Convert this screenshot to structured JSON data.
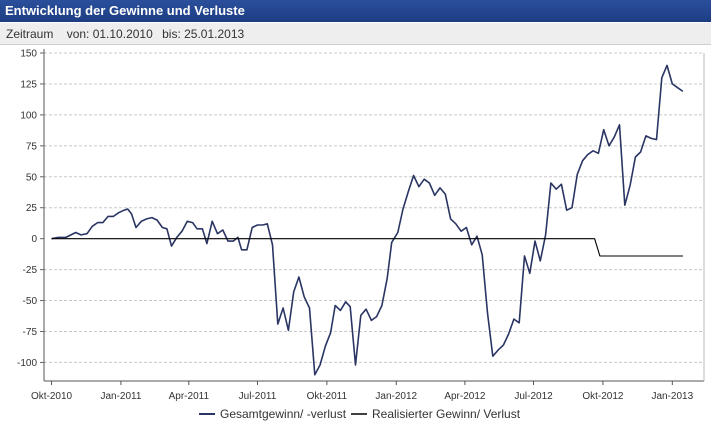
{
  "header": {
    "title": "Entwicklung der Gewinne und Verluste",
    "period_label": "Zeitraum",
    "from_label": "von: 01.10.2010",
    "to_label": "bis: 25.01.2013"
  },
  "colors": {
    "header_bg": "#23468f",
    "series_total": "#2a3563",
    "series_realized": "#000000",
    "grid": "#c8c8c8"
  },
  "chart_data": {
    "type": "line",
    "title": "",
    "xlabel": "",
    "ylabel": "",
    "ylim": [
      -115,
      150
    ],
    "yticks": [
      150,
      125,
      100,
      75,
      50,
      25,
      0,
      -25,
      -50,
      -75,
      -100
    ],
    "xlim": [
      "2010-09-21",
      "2013-02-12"
    ],
    "xticks": [
      {
        "date": "2010-10-01",
        "label": "Okt-2010"
      },
      {
        "date": "2011-01-01",
        "label": "Jan-2011"
      },
      {
        "date": "2011-04-01",
        "label": "Apr-2011"
      },
      {
        "date": "2011-07-01",
        "label": "Jul-2011"
      },
      {
        "date": "2011-10-01",
        "label": "Okt-2011"
      },
      {
        "date": "2012-01-01",
        "label": "Jan-2012"
      },
      {
        "date": "2012-04-01",
        "label": "Apr-2012"
      },
      {
        "date": "2012-07-01",
        "label": "Jul-2012"
      },
      {
        "date": "2012-10-01",
        "label": "Okt-2012"
      },
      {
        "date": "2013-01-01",
        "label": "Jan-2013"
      }
    ],
    "grid": true,
    "legend": "bottom",
    "series": [
      {
        "name": "Gesamtgewinn/ -verlust",
        "points": [
          [
            "2010-10-01",
            0
          ],
          [
            "2010-10-10",
            1
          ],
          [
            "2010-10-20",
            1
          ],
          [
            "2010-11-02",
            5
          ],
          [
            "2010-11-09",
            3
          ],
          [
            "2010-11-17",
            4
          ],
          [
            "2010-11-24",
            10
          ],
          [
            "2010-12-01",
            13
          ],
          [
            "2010-12-08",
            13
          ],
          [
            "2010-12-15",
            18
          ],
          [
            "2010-12-22",
            18
          ],
          [
            "2010-12-29",
            21
          ],
          [
            "2011-01-05",
            23
          ],
          [
            "2011-01-10",
            24
          ],
          [
            "2011-01-15",
            20
          ],
          [
            "2011-01-21",
            9
          ],
          [
            "2011-01-28",
            14
          ],
          [
            "2011-02-04",
            16
          ],
          [
            "2011-02-11",
            17
          ],
          [
            "2011-02-18",
            15
          ],
          [
            "2011-02-25",
            9
          ],
          [
            "2011-03-03",
            8
          ],
          [
            "2011-03-09",
            -6
          ],
          [
            "2011-03-16",
            1
          ],
          [
            "2011-03-23",
            6
          ],
          [
            "2011-03-30",
            14
          ],
          [
            "2011-04-06",
            13
          ],
          [
            "2011-04-12",
            8
          ],
          [
            "2011-04-19",
            8
          ],
          [
            "2011-04-25",
            -4
          ],
          [
            "2011-05-02",
            14
          ],
          [
            "2011-05-09",
            4
          ],
          [
            "2011-05-16",
            7
          ],
          [
            "2011-05-23",
            -2
          ],
          [
            "2011-05-30",
            -2
          ],
          [
            "2011-06-05",
            1
          ],
          [
            "2011-06-10",
            -9
          ],
          [
            "2011-06-17",
            -9
          ],
          [
            "2011-06-24",
            9
          ],
          [
            "2011-07-01",
            11
          ],
          [
            "2011-07-08",
            11
          ],
          [
            "2011-07-14",
            12
          ],
          [
            "2011-07-21",
            -5
          ],
          [
            "2011-07-28",
            -69
          ],
          [
            "2011-08-04",
            -56
          ],
          [
            "2011-08-11",
            -74
          ],
          [
            "2011-08-18",
            -43
          ],
          [
            "2011-08-25",
            -31
          ],
          [
            "2011-09-01",
            -47
          ],
          [
            "2011-09-08",
            -56
          ],
          [
            "2011-09-15",
            -110
          ],
          [
            "2011-09-22",
            -102
          ],
          [
            "2011-09-29",
            -87
          ],
          [
            "2011-10-06",
            -76
          ],
          [
            "2011-10-12",
            -54
          ],
          [
            "2011-10-19",
            -58
          ],
          [
            "2011-10-26",
            -51
          ],
          [
            "2011-11-01",
            -55
          ],
          [
            "2011-11-08",
            -102
          ],
          [
            "2011-11-15",
            -62
          ],
          [
            "2011-11-22",
            -57
          ],
          [
            "2011-11-29",
            -66
          ],
          [
            "2011-12-06",
            -63
          ],
          [
            "2011-12-13",
            -54
          ],
          [
            "2011-12-20",
            -32
          ],
          [
            "2011-12-26",
            -3
          ],
          [
            "2012-01-03",
            5
          ],
          [
            "2012-01-10",
            24
          ],
          [
            "2012-01-17",
            38
          ],
          [
            "2012-01-24",
            51
          ],
          [
            "2012-01-31",
            42
          ],
          [
            "2012-02-07",
            48
          ],
          [
            "2012-02-14",
            45
          ],
          [
            "2012-02-21",
            35
          ],
          [
            "2012-02-28",
            41
          ],
          [
            "2012-03-06",
            36
          ],
          [
            "2012-03-13",
            16
          ],
          [
            "2012-03-20",
            12
          ],
          [
            "2012-03-27",
            6
          ],
          [
            "2012-04-03",
            9
          ],
          [
            "2012-04-10",
            -5
          ],
          [
            "2012-04-17",
            2
          ],
          [
            "2012-04-24",
            -13
          ],
          [
            "2012-05-01",
            -60
          ],
          [
            "2012-05-08",
            -95
          ],
          [
            "2012-05-15",
            -90
          ],
          [
            "2012-05-22",
            -86
          ],
          [
            "2012-05-29",
            -77
          ],
          [
            "2012-06-05",
            -65
          ],
          [
            "2012-06-12",
            -68
          ],
          [
            "2012-06-19",
            -14
          ],
          [
            "2012-06-26",
            -28
          ],
          [
            "2012-07-03",
            -2
          ],
          [
            "2012-07-10",
            -18
          ],
          [
            "2012-07-17",
            3
          ],
          [
            "2012-07-24",
            45
          ],
          [
            "2012-07-31",
            40
          ],
          [
            "2012-08-07",
            44
          ],
          [
            "2012-08-14",
            23
          ],
          [
            "2012-08-21",
            25
          ],
          [
            "2012-08-28",
            52
          ],
          [
            "2012-09-04",
            63
          ],
          [
            "2012-09-11",
            68
          ],
          [
            "2012-09-18",
            71
          ],
          [
            "2012-09-25",
            69
          ],
          [
            "2012-10-02",
            88
          ],
          [
            "2012-10-09",
            75
          ],
          [
            "2012-10-16",
            82
          ],
          [
            "2012-10-23",
            92
          ],
          [
            "2012-10-30",
            27
          ],
          [
            "2012-11-06",
            43
          ],
          [
            "2012-11-13",
            66
          ],
          [
            "2012-11-20",
            70
          ],
          [
            "2012-11-27",
            83
          ],
          [
            "2012-12-04",
            81
          ],
          [
            "2012-12-11",
            80
          ],
          [
            "2012-12-18",
            130
          ],
          [
            "2012-12-25",
            140
          ],
          [
            "2013-01-01",
            125
          ],
          [
            "2013-01-08",
            122
          ],
          [
            "2013-01-15",
            119
          ]
        ]
      },
      {
        "name": "Realisierter Gewinn/ Verlust",
        "points": [
          [
            "2010-10-01",
            0
          ],
          [
            "2012-09-20",
            0
          ],
          [
            "2012-09-27",
            -14
          ],
          [
            "2013-01-15",
            -14
          ]
        ]
      }
    ]
  }
}
